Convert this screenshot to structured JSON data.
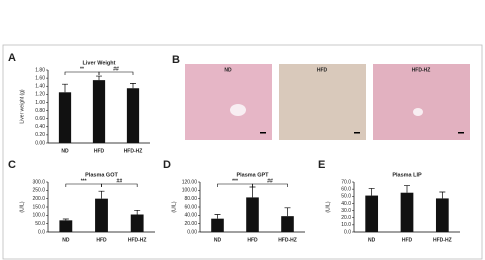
{
  "chart_data": [
    {
      "type": "bar",
      "panel": "A",
      "title": "Liver Weight",
      "ylabel": "Liver weight (g)",
      "categories": [
        "ND",
        "HFD",
        "HFD-HZ"
      ],
      "values": [
        1.25,
        1.55,
        1.35
      ],
      "errors": [
        0.2,
        0.1,
        0.12
      ],
      "color": "#111111",
      "ylim": [
        0,
        1.8
      ],
      "yticks": [
        {
          "value": 0,
          "label": "0.00"
        },
        {
          "value": 0.2,
          "label": "0.20"
        },
        {
          "value": 0.4,
          "label": "0.40"
        },
        {
          "value": 0.6,
          "label": "0.60"
        },
        {
          "value": 0.8,
          "label": "0.80"
        },
        {
          "value": 1.0,
          "label": "1.00"
        },
        {
          "value": 1.2,
          "label": "1.20"
        },
        {
          "value": 1.4,
          "label": "1.40"
        },
        {
          "value": 1.6,
          "label": "1.60"
        },
        {
          "value": 1.8,
          "label": "1.80"
        }
      ],
      "annotations": [
        "**",
        "##"
      ]
    },
    {
      "type": "bar",
      "panel": "C",
      "title": "Plasma GOT",
      "ylabel": "(U/L)",
      "categories": [
        "ND",
        "HFD",
        "HFD-HZ"
      ],
      "values": [
        70,
        200,
        105
      ],
      "errors": [
        8,
        45,
        25
      ],
      "color": "#111111",
      "ylim": [
        0,
        300
      ],
      "yticks": [
        {
          "value": 0,
          "label": "0.0"
        },
        {
          "value": 50,
          "label": "50.0"
        },
        {
          "value": 100,
          "label": "100.0"
        },
        {
          "value": 150,
          "label": "150.0"
        },
        {
          "value": 200,
          "label": "200.0"
        },
        {
          "value": 250,
          "label": "250.0"
        },
        {
          "value": 300,
          "label": "300.0"
        }
      ],
      "annotations": [
        "***",
        "##"
      ]
    },
    {
      "type": "bar",
      "panel": "D",
      "title": "Plasma GPT",
      "ylabel": "(U/L)",
      "categories": [
        "ND",
        "HFD",
        "HFD-HZ"
      ],
      "values": [
        32,
        83,
        38
      ],
      "errors": [
        10,
        25,
        20
      ],
      "color": "#111111",
      "ylim": [
        0,
        120
      ],
      "yticks": [
        {
          "value": 0,
          "label": "0.00"
        },
        {
          "value": 20,
          "label": "20.00"
        },
        {
          "value": 40,
          "label": "40.00"
        },
        {
          "value": 60,
          "label": "60.00"
        },
        {
          "value": 80,
          "label": "80.00"
        },
        {
          "value": 100,
          "label": "100.00"
        },
        {
          "value": 120,
          "label": "120.00"
        }
      ],
      "annotations": [
        "***",
        "##"
      ]
    },
    {
      "type": "bar",
      "panel": "E",
      "title": "Plasma LIP",
      "ylabel": "(U/L)",
      "categories": [
        "ND",
        "HFD",
        "HFD-HZ"
      ],
      "values": [
        51,
        55,
        47
      ],
      "errors": [
        10,
        10,
        9
      ],
      "color": "#111111",
      "ylim": [
        0,
        70
      ],
      "yticks": [
        {
          "value": 0,
          "label": "0.0"
        },
        {
          "value": 10,
          "label": "10.0"
        },
        {
          "value": 20,
          "label": "20.0"
        },
        {
          "value": 30,
          "label": "30.0"
        },
        {
          "value": 40,
          "label": "40.0"
        },
        {
          "value": 50,
          "label": "50.0"
        },
        {
          "value": 60,
          "label": "60.0"
        },
        {
          "value": 70,
          "label": "70.0"
        }
      ],
      "annotations": []
    }
  ],
  "histology": {
    "panel": "B",
    "labels": [
      "ND",
      "HFD",
      "HFD-HZ"
    ]
  }
}
